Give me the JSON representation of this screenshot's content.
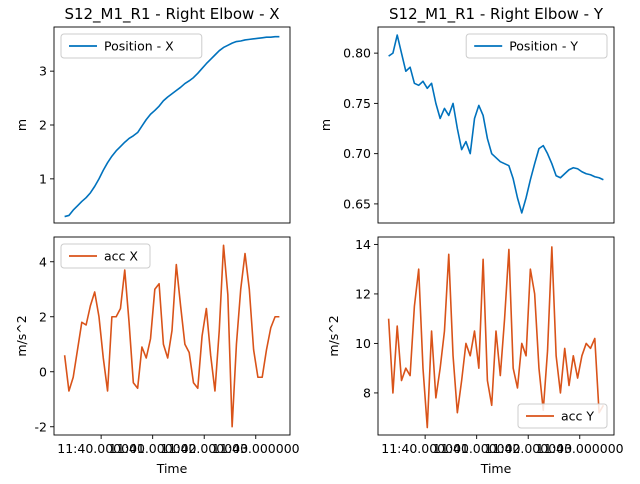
{
  "colors": {
    "blue": "#0072bd",
    "orange": "#d95319",
    "text": "#000000",
    "axes": "#000000"
  },
  "chart_data": [
    {
      "type": "line",
      "title": "S12_M1_R1 - Right Elbow - X",
      "xlabel": "",
      "ylabel": "m",
      "ylim": [
        0.18,
        3.82
      ],
      "yticks": [
        1,
        2,
        3
      ],
      "xlim": [
        0,
        1
      ],
      "xticks": [],
      "legend": "top-left",
      "grid": false,
      "series": [
        {
          "name": "Position - X",
          "color": "#0072bd",
          "x": [
            0.0,
            0.02,
            0.04,
            0.06,
            0.08,
            0.1,
            0.12,
            0.14,
            0.16,
            0.18,
            0.2,
            0.22,
            0.24,
            0.26,
            0.28,
            0.3,
            0.32,
            0.34,
            0.36,
            0.38,
            0.4,
            0.42,
            0.44,
            0.46,
            0.48,
            0.5,
            0.52,
            0.54,
            0.56,
            0.58,
            0.6,
            0.62,
            0.64,
            0.66,
            0.68,
            0.7,
            0.72,
            0.74,
            0.76,
            0.78,
            0.8,
            0.82,
            0.84,
            0.86,
            0.88,
            0.9,
            0.92,
            0.94,
            0.96,
            0.98,
            1.0
          ],
          "y": [
            0.3,
            0.32,
            0.42,
            0.5,
            0.58,
            0.65,
            0.74,
            0.86,
            1.0,
            1.16,
            1.3,
            1.42,
            1.52,
            1.6,
            1.68,
            1.75,
            1.8,
            1.86,
            1.98,
            2.1,
            2.2,
            2.27,
            2.35,
            2.45,
            2.52,
            2.58,
            2.64,
            2.7,
            2.77,
            2.82,
            2.88,
            2.96,
            3.05,
            3.14,
            3.22,
            3.3,
            3.38,
            3.44,
            3.48,
            3.52,
            3.55,
            3.56,
            3.58,
            3.59,
            3.6,
            3.61,
            3.62,
            3.63,
            3.63,
            3.64,
            3.64
          ]
        }
      ]
    },
    {
      "type": "line",
      "title": "S12_M1_R1 - Right Elbow - Y",
      "xlabel": "",
      "ylabel": "m",
      "ylim": [
        0.631,
        0.826
      ],
      "yticks": [
        0.65,
        0.7,
        0.75,
        0.8
      ],
      "ytick_labels": [
        "0.65",
        "0.70",
        "0.75",
        "0.80"
      ],
      "xlim": [
        0,
        1
      ],
      "xticks": [],
      "legend": "top-right",
      "grid": false,
      "series": [
        {
          "name": "Position - Y",
          "color": "#0072bd",
          "x": [
            0.0,
            0.02,
            0.04,
            0.06,
            0.08,
            0.1,
            0.12,
            0.14,
            0.16,
            0.18,
            0.2,
            0.22,
            0.24,
            0.26,
            0.28,
            0.3,
            0.32,
            0.34,
            0.36,
            0.38,
            0.4,
            0.42,
            0.44,
            0.46,
            0.48,
            0.5,
            0.52,
            0.54,
            0.56,
            0.58,
            0.6,
            0.62,
            0.64,
            0.66,
            0.68,
            0.7,
            0.72,
            0.74,
            0.76,
            0.78,
            0.8,
            0.82,
            0.84,
            0.86,
            0.88,
            0.9,
            0.92,
            0.94,
            0.96,
            0.98,
            1.0
          ],
          "y": [
            0.797,
            0.8,
            0.818,
            0.8,
            0.782,
            0.786,
            0.77,
            0.768,
            0.772,
            0.765,
            0.77,
            0.75,
            0.735,
            0.745,
            0.738,
            0.75,
            0.725,
            0.704,
            0.712,
            0.7,
            0.735,
            0.748,
            0.738,
            0.715,
            0.7,
            0.696,
            0.692,
            0.69,
            0.688,
            0.675,
            0.656,
            0.641,
            0.656,
            0.674,
            0.69,
            0.705,
            0.708,
            0.7,
            0.69,
            0.678,
            0.676,
            0.68,
            0.684,
            0.686,
            0.685,
            0.682,
            0.68,
            0.679,
            0.677,
            0.676,
            0.674
          ]
        }
      ]
    },
    {
      "type": "line",
      "title": "",
      "xlabel": "Time",
      "ylabel": "m/s^2",
      "ylim": [
        -2.3,
        4.9
      ],
      "yticks": [
        -2,
        0,
        2,
        4
      ],
      "xlim": [
        0,
        1
      ],
      "xticks": [
        0.17,
        0.41,
        0.65,
        0.89
      ],
      "xtick_labels": [
        "11:40.000000",
        "11:41.000000",
        "11:42.000000",
        "11:43.000000"
      ],
      "legend": "top-left",
      "grid": false,
      "series": [
        {
          "name": "acc X",
          "color": "#d95319",
          "x": [
            0.0,
            0.02,
            0.04,
            0.06,
            0.08,
            0.1,
            0.12,
            0.14,
            0.16,
            0.18,
            0.2,
            0.22,
            0.24,
            0.26,
            0.28,
            0.3,
            0.32,
            0.34,
            0.36,
            0.38,
            0.4,
            0.42,
            0.44,
            0.46,
            0.48,
            0.5,
            0.52,
            0.54,
            0.56,
            0.58,
            0.6,
            0.62,
            0.64,
            0.66,
            0.68,
            0.7,
            0.72,
            0.74,
            0.76,
            0.78,
            0.8,
            0.82,
            0.84,
            0.86,
            0.88,
            0.9,
            0.92,
            0.94,
            0.96,
            0.98,
            1.0
          ],
          "y": [
            0.6,
            -0.7,
            -0.2,
            0.8,
            1.8,
            1.7,
            2.4,
            2.9,
            2.0,
            0.5,
            -0.7,
            2.0,
            2.0,
            2.3,
            3.7,
            1.8,
            -0.4,
            -0.6,
            0.9,
            0.5,
            1.2,
            3.0,
            3.2,
            1.0,
            0.5,
            1.5,
            3.9,
            2.4,
            1.0,
            0.7,
            -0.4,
            -0.6,
            1.3,
            2.3,
            0.6,
            -0.7,
            1.5,
            4.6,
            2.8,
            -2.0,
            1.0,
            3.0,
            4.3,
            3.0,
            0.8,
            -0.2,
            -0.2,
            0.8,
            1.6,
            2.0,
            2.0
          ]
        }
      ]
    },
    {
      "type": "line",
      "title": "",
      "xlabel": "Time",
      "ylabel": "m/s^2",
      "ylim": [
        6.3,
        14.3
      ],
      "yticks": [
        8,
        10,
        12,
        14
      ],
      "xlim": [
        0,
        1
      ],
      "xticks": [
        0.17,
        0.41,
        0.65,
        0.89
      ],
      "xtick_labels": [
        "11:40.000000",
        "11:41.000000",
        "11:42.000000",
        "11:43.000000"
      ],
      "legend": "bottom-right",
      "grid": false,
      "series": [
        {
          "name": "acc Y",
          "color": "#d95319",
          "x": [
            0.0,
            0.02,
            0.04,
            0.06,
            0.08,
            0.1,
            0.12,
            0.14,
            0.16,
            0.18,
            0.2,
            0.22,
            0.24,
            0.26,
            0.28,
            0.3,
            0.32,
            0.34,
            0.36,
            0.38,
            0.4,
            0.42,
            0.44,
            0.46,
            0.48,
            0.5,
            0.52,
            0.54,
            0.56,
            0.58,
            0.6,
            0.62,
            0.64,
            0.66,
            0.68,
            0.7,
            0.72,
            0.74,
            0.76,
            0.78,
            0.8,
            0.82,
            0.84,
            0.86,
            0.88,
            0.9,
            0.92,
            0.94,
            0.96,
            0.98,
            1.0
          ],
          "y": [
            11.0,
            8.0,
            10.7,
            8.5,
            9.0,
            8.7,
            11.5,
            13.0,
            9.0,
            6.6,
            10.5,
            7.8,
            9.0,
            10.5,
            13.6,
            9.5,
            7.2,
            8.5,
            10.0,
            9.5,
            10.5,
            9.0,
            13.4,
            8.5,
            7.5,
            10.5,
            8.7,
            11.0,
            13.8,
            9.0,
            8.2,
            10.0,
            9.5,
            13.0,
            12.0,
            9.0,
            7.3,
            9.7,
            13.9,
            9.5,
            8.0,
            9.8,
            8.3,
            9.5,
            8.6,
            9.5,
            10.0,
            9.8,
            10.2,
            7.2,
            7.5
          ]
        }
      ]
    }
  ]
}
